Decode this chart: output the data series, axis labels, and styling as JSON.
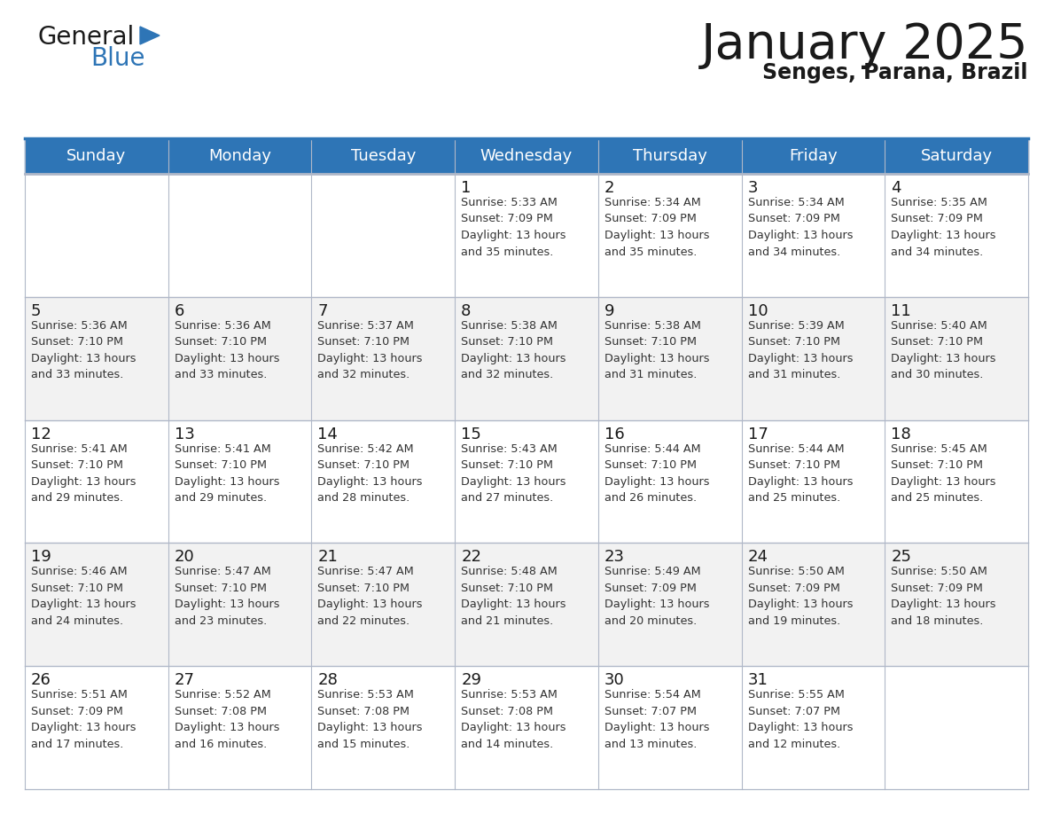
{
  "title": "January 2025",
  "subtitle": "Senges, Parana, Brazil",
  "header_bg_color": "#2E75B6",
  "header_text_color": "#FFFFFF",
  "row_bg_even": "#F2F2F2",
  "row_bg_odd": "#FFFFFF",
  "day_headers": [
    "Sunday",
    "Monday",
    "Tuesday",
    "Wednesday",
    "Thursday",
    "Friday",
    "Saturday"
  ],
  "title_color": "#1A1A1A",
  "subtitle_color": "#1A1A1A",
  "cell_text_color": "#333333",
  "day_num_color": "#1A1A1A",
  "divider_color": "#2E75B6",
  "grid_color": "#B0B8C8",
  "logo_general_color": "#1A1A1A",
  "logo_blue_color": "#2E75B6",
  "logo_triangle_color": "#2E75B6",
  "calendar_data": [
    [
      {
        "day": "",
        "sunrise": "",
        "sunset": "",
        "daylight": ""
      },
      {
        "day": "",
        "sunrise": "",
        "sunset": "",
        "daylight": ""
      },
      {
        "day": "",
        "sunrise": "",
        "sunset": "",
        "daylight": ""
      },
      {
        "day": "1",
        "sunrise": "5:33 AM",
        "sunset": "7:09 PM",
        "daylight": "13 hours\nand 35 minutes."
      },
      {
        "day": "2",
        "sunrise": "5:34 AM",
        "sunset": "7:09 PM",
        "daylight": "13 hours\nand 35 minutes."
      },
      {
        "day": "3",
        "sunrise": "5:34 AM",
        "sunset": "7:09 PM",
        "daylight": "13 hours\nand 34 minutes."
      },
      {
        "day": "4",
        "sunrise": "5:35 AM",
        "sunset": "7:09 PM",
        "daylight": "13 hours\nand 34 minutes."
      }
    ],
    [
      {
        "day": "5",
        "sunrise": "5:36 AM",
        "sunset": "7:10 PM",
        "daylight": "13 hours\nand 33 minutes."
      },
      {
        "day": "6",
        "sunrise": "5:36 AM",
        "sunset": "7:10 PM",
        "daylight": "13 hours\nand 33 minutes."
      },
      {
        "day": "7",
        "sunrise": "5:37 AM",
        "sunset": "7:10 PM",
        "daylight": "13 hours\nand 32 minutes."
      },
      {
        "day": "8",
        "sunrise": "5:38 AM",
        "sunset": "7:10 PM",
        "daylight": "13 hours\nand 32 minutes."
      },
      {
        "day": "9",
        "sunrise": "5:38 AM",
        "sunset": "7:10 PM",
        "daylight": "13 hours\nand 31 minutes."
      },
      {
        "day": "10",
        "sunrise": "5:39 AM",
        "sunset": "7:10 PM",
        "daylight": "13 hours\nand 31 minutes."
      },
      {
        "day": "11",
        "sunrise": "5:40 AM",
        "sunset": "7:10 PM",
        "daylight": "13 hours\nand 30 minutes."
      }
    ],
    [
      {
        "day": "12",
        "sunrise": "5:41 AM",
        "sunset": "7:10 PM",
        "daylight": "13 hours\nand 29 minutes."
      },
      {
        "day": "13",
        "sunrise": "5:41 AM",
        "sunset": "7:10 PM",
        "daylight": "13 hours\nand 29 minutes."
      },
      {
        "day": "14",
        "sunrise": "5:42 AM",
        "sunset": "7:10 PM",
        "daylight": "13 hours\nand 28 minutes."
      },
      {
        "day": "15",
        "sunrise": "5:43 AM",
        "sunset": "7:10 PM",
        "daylight": "13 hours\nand 27 minutes."
      },
      {
        "day": "16",
        "sunrise": "5:44 AM",
        "sunset": "7:10 PM",
        "daylight": "13 hours\nand 26 minutes."
      },
      {
        "day": "17",
        "sunrise": "5:44 AM",
        "sunset": "7:10 PM",
        "daylight": "13 hours\nand 25 minutes."
      },
      {
        "day": "18",
        "sunrise": "5:45 AM",
        "sunset": "7:10 PM",
        "daylight": "13 hours\nand 25 minutes."
      }
    ],
    [
      {
        "day": "19",
        "sunrise": "5:46 AM",
        "sunset": "7:10 PM",
        "daylight": "13 hours\nand 24 minutes."
      },
      {
        "day": "20",
        "sunrise": "5:47 AM",
        "sunset": "7:10 PM",
        "daylight": "13 hours\nand 23 minutes."
      },
      {
        "day": "21",
        "sunrise": "5:47 AM",
        "sunset": "7:10 PM",
        "daylight": "13 hours\nand 22 minutes."
      },
      {
        "day": "22",
        "sunrise": "5:48 AM",
        "sunset": "7:10 PM",
        "daylight": "13 hours\nand 21 minutes."
      },
      {
        "day": "23",
        "sunrise": "5:49 AM",
        "sunset": "7:09 PM",
        "daylight": "13 hours\nand 20 minutes."
      },
      {
        "day": "24",
        "sunrise": "5:50 AM",
        "sunset": "7:09 PM",
        "daylight": "13 hours\nand 19 minutes."
      },
      {
        "day": "25",
        "sunrise": "5:50 AM",
        "sunset": "7:09 PM",
        "daylight": "13 hours\nand 18 minutes."
      }
    ],
    [
      {
        "day": "26",
        "sunrise": "5:51 AM",
        "sunset": "7:09 PM",
        "daylight": "13 hours\nand 17 minutes."
      },
      {
        "day": "27",
        "sunrise": "5:52 AM",
        "sunset": "7:08 PM",
        "daylight": "13 hours\nand 16 minutes."
      },
      {
        "day": "28",
        "sunrise": "5:53 AM",
        "sunset": "7:08 PM",
        "daylight": "13 hours\nand 15 minutes."
      },
      {
        "day": "29",
        "sunrise": "5:53 AM",
        "sunset": "7:08 PM",
        "daylight": "13 hours\nand 14 minutes."
      },
      {
        "day": "30",
        "sunrise": "5:54 AM",
        "sunset": "7:07 PM",
        "daylight": "13 hours\nand 13 minutes."
      },
      {
        "day": "31",
        "sunrise": "5:55 AM",
        "sunset": "7:07 PM",
        "daylight": "13 hours\nand 12 minutes."
      },
      {
        "day": "",
        "sunrise": "",
        "sunset": "",
        "daylight": ""
      }
    ]
  ]
}
